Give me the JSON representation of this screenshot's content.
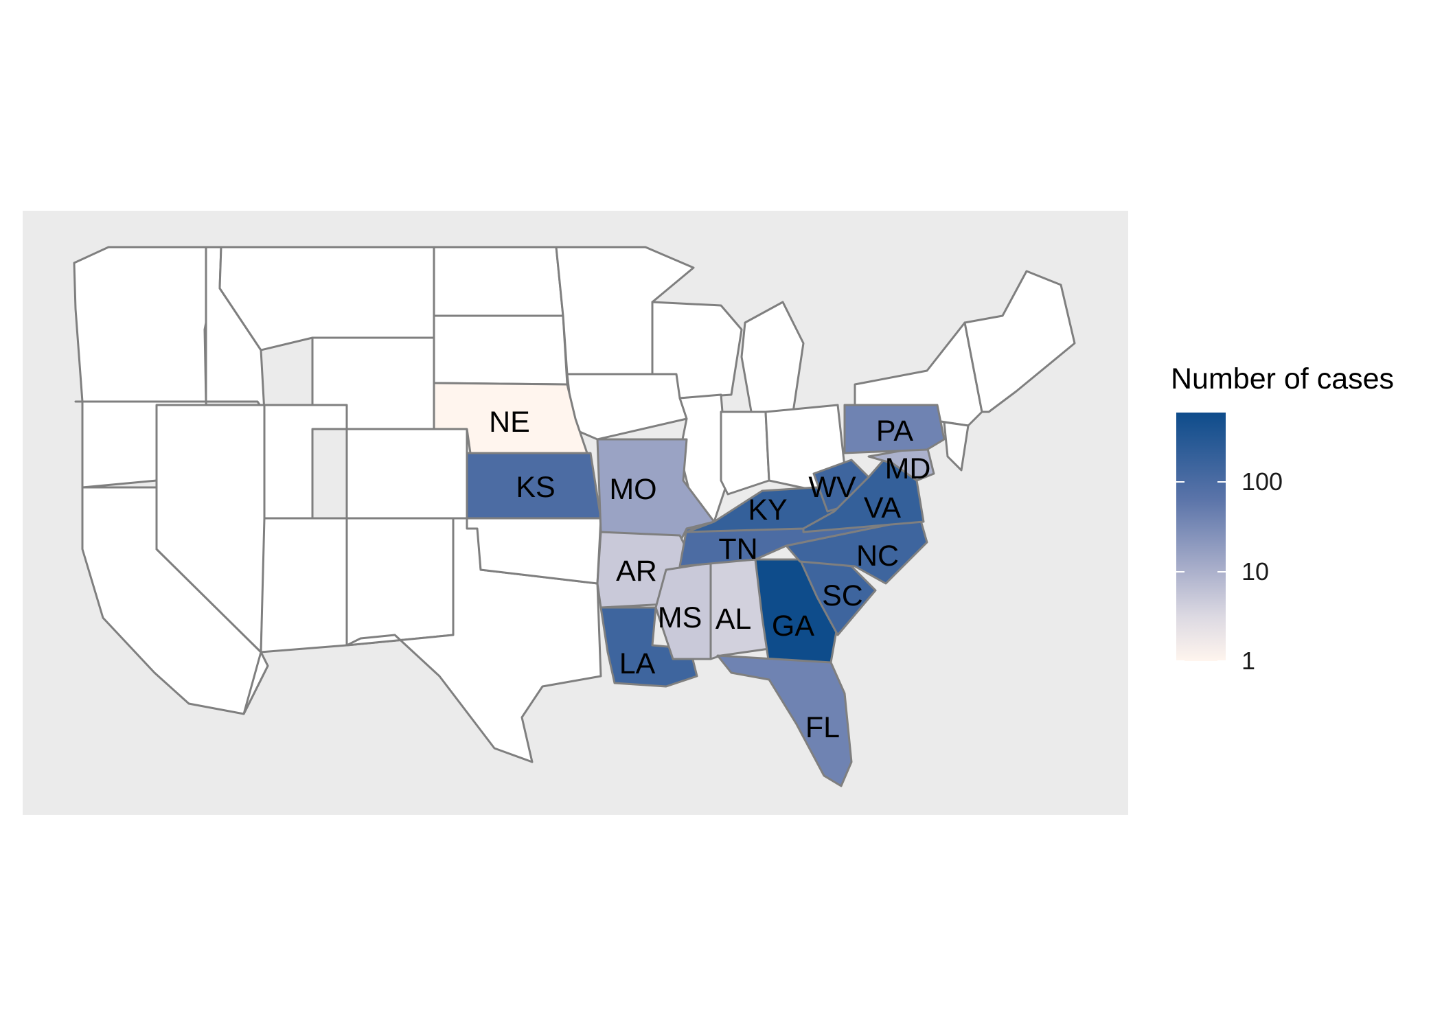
{
  "chart_data": {
    "type": "choropleth",
    "title": "",
    "legend": {
      "title": "Number of cases",
      "scale": "log10",
      "breaks": [
        1,
        10,
        100
      ],
      "break_labels": [
        "1",
        "10",
        "100"
      ],
      "range": [
        1,
        600
      ],
      "low_color": "#fff5ee",
      "high_color": "#0e4c8b",
      "placement": "right"
    },
    "panel_background": "#ebebeb",
    "no_data_fill": "#ffffff",
    "border_color": "#7f7f7f",
    "states": [
      {
        "abbr": "NE",
        "value": 1
      },
      {
        "abbr": "KS",
        "value": 100
      },
      {
        "abbr": "MO",
        "value": 15
      },
      {
        "abbr": "AR",
        "value": 5
      },
      {
        "abbr": "LA",
        "value": 150
      },
      {
        "abbr": "MS",
        "value": 5
      },
      {
        "abbr": "AL",
        "value": 4
      },
      {
        "abbr": "GA",
        "value": 600
      },
      {
        "abbr": "FL",
        "value": 40
      },
      {
        "abbr": "SC",
        "value": 150
      },
      {
        "abbr": "NC",
        "value": 150
      },
      {
        "abbr": "TN",
        "value": 100
      },
      {
        "abbr": "KY",
        "value": 200
      },
      {
        "abbr": "WV",
        "value": 150
      },
      {
        "abbr": "VA",
        "value": 200
      },
      {
        "abbr": "MD",
        "value": 10
      },
      {
        "abbr": "PA",
        "value": 40
      }
    ]
  }
}
